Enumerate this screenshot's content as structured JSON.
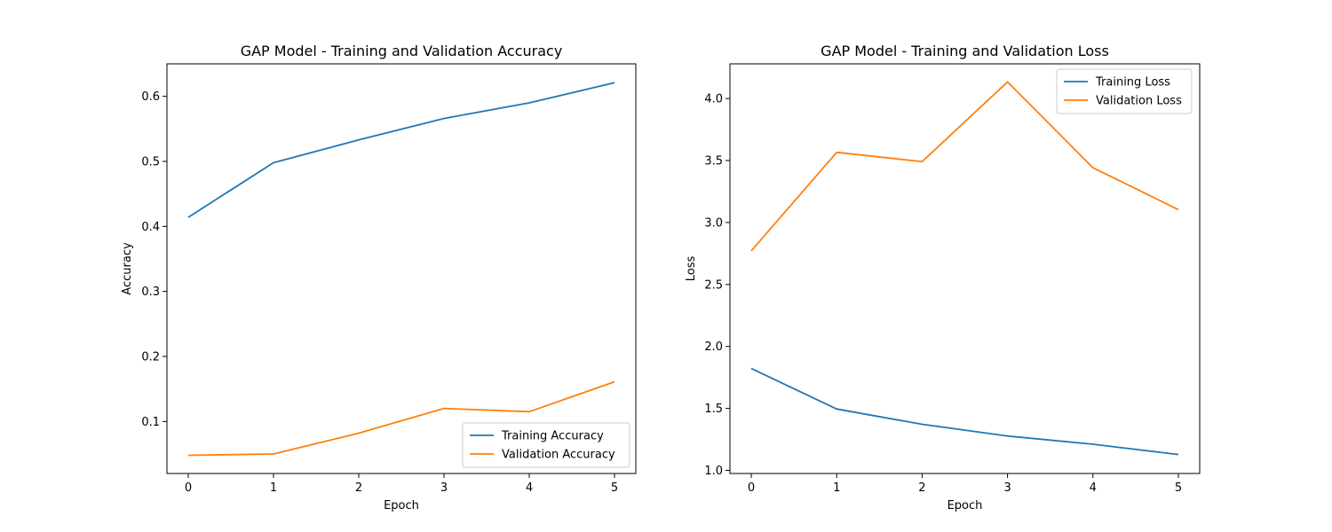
{
  "colors": {
    "training": "#1f77b4",
    "validation": "#ff7f0e",
    "axes": "#000000",
    "legend_border": "#cccccc"
  },
  "chart_data": [
    {
      "type": "line",
      "title": "GAP Model - Training and Validation Accuracy",
      "xlabel": "Epoch",
      "ylabel": "Accuracy",
      "x": [
        0,
        1,
        2,
        3,
        4,
        5
      ],
      "xlim": [
        -0.25,
        5.25
      ],
      "ylim": [
        0.02,
        0.65
      ],
      "xticks": [
        0,
        1,
        2,
        3,
        4,
        5
      ],
      "yticks": [
        0.1,
        0.2,
        0.3,
        0.4,
        0.5,
        0.6
      ],
      "grid": false,
      "legend_position": "lower-right",
      "series": [
        {
          "name": "Training Accuracy",
          "color_key": "training",
          "values": [
            0.414,
            0.498,
            0.533,
            0.566,
            0.59,
            0.621
          ]
        },
        {
          "name": "Validation Accuracy",
          "color_key": "validation",
          "values": [
            0.048,
            0.05,
            0.082,
            0.12,
            0.115,
            0.161
          ]
        }
      ]
    },
    {
      "type": "line",
      "title": "GAP Model - Training and Validation Loss",
      "xlabel": "Epoch",
      "ylabel": "Loss",
      "x": [
        0,
        1,
        2,
        3,
        4,
        5
      ],
      "xlim": [
        -0.25,
        5.25
      ],
      "ylim": [
        0.975,
        4.28
      ],
      "xticks": [
        0,
        1,
        2,
        3,
        4,
        5
      ],
      "yticks": [
        1.0,
        1.5,
        2.0,
        2.5,
        3.0,
        3.5,
        4.0
      ],
      "ytick_decimals": 1,
      "grid": false,
      "legend_position": "upper-right",
      "series": [
        {
          "name": "Training Loss",
          "color_key": "training",
          "values": [
            1.822,
            1.495,
            1.372,
            1.277,
            1.211,
            1.128
          ]
        },
        {
          "name": "Validation Loss",
          "color_key": "validation",
          "values": [
            2.771,
            3.566,
            3.491,
            4.134,
            3.442,
            3.104
          ]
        }
      ]
    }
  ]
}
